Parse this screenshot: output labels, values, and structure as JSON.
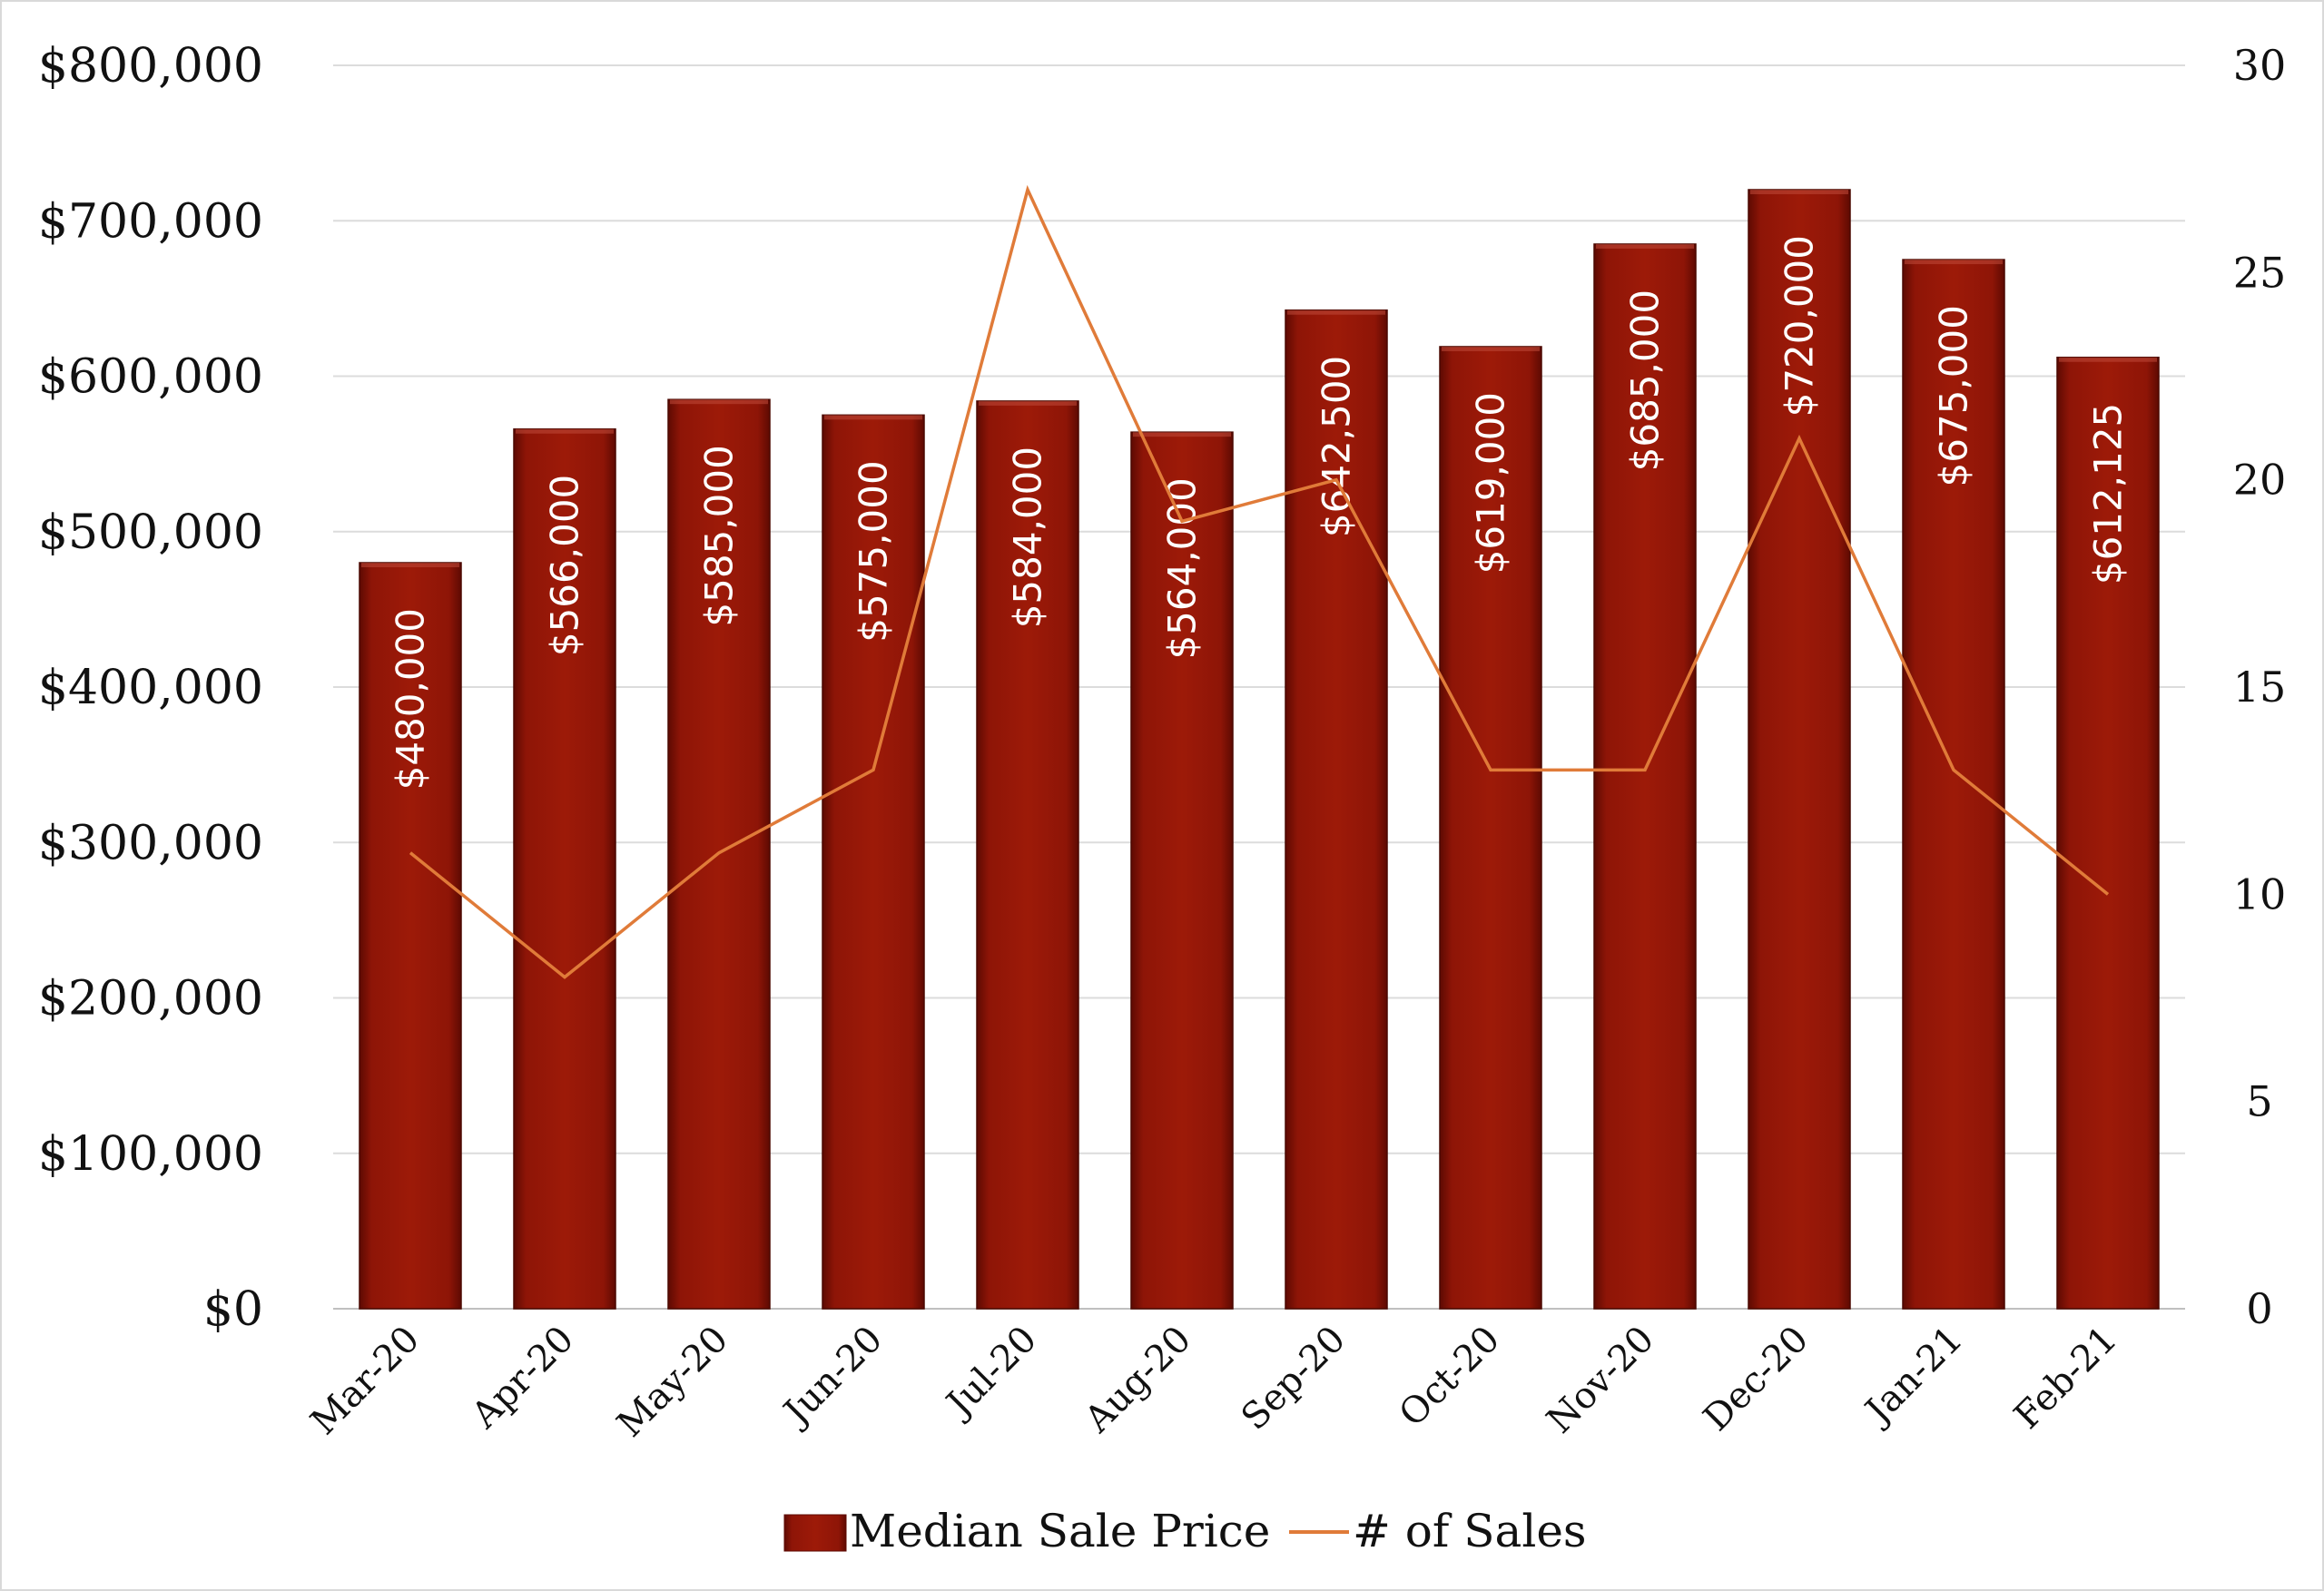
{
  "chart_data": {
    "type": "bar",
    "categories": [
      "Mar-20",
      "Apr-20",
      "May-20",
      "Jun-20",
      "Jul-20",
      "Aug-20",
      "Sep-20",
      "Oct-20",
      "Nov-20",
      "Dec-20",
      "Jan-21",
      "Feb-21"
    ],
    "series": [
      {
        "name": "Median Sale Price",
        "type": "bar",
        "axis": "left",
        "color": "#8b1508",
        "values": [
          480000,
          566000,
          585000,
          575000,
          584000,
          564000,
          642500,
          619000,
          685000,
          720000,
          675000,
          612125
        ],
        "labels": [
          "$480,000",
          "$566,000",
          "$585,000",
          "$575,000",
          "$584,000",
          "$564,000",
          "$642,500",
          "$619,000",
          "$685,000",
          "$720,000",
          "$675,000",
          "$612,125"
        ]
      },
      {
        "name": "# of Sales",
        "type": "line",
        "axis": "right",
        "color": "#e07b39",
        "values": [
          11,
          8,
          11,
          13,
          27,
          19,
          20,
          13,
          13,
          21,
          13,
          10
        ]
      }
    ],
    "y_left": {
      "ylim": [
        0,
        800000
      ],
      "ticks": [
        0,
        100000,
        200000,
        300000,
        400000,
        500000,
        600000,
        700000,
        800000
      ],
      "tick_labels": [
        "$0",
        "$100,000",
        "$200,000",
        "$300,000",
        "$400,000",
        "$500,000",
        "$600,000",
        "$700,000",
        "$800,000"
      ]
    },
    "y_right": {
      "ylim": [
        0,
        30
      ],
      "ticks": [
        0,
        5,
        10,
        15,
        20,
        25,
        30
      ],
      "tick_labels": [
        "0",
        "5",
        "10",
        "15",
        "20",
        "25",
        "30"
      ]
    },
    "grid": true,
    "legend_position": "bottom",
    "title": "",
    "xlabel": "",
    "ylabel": ""
  }
}
